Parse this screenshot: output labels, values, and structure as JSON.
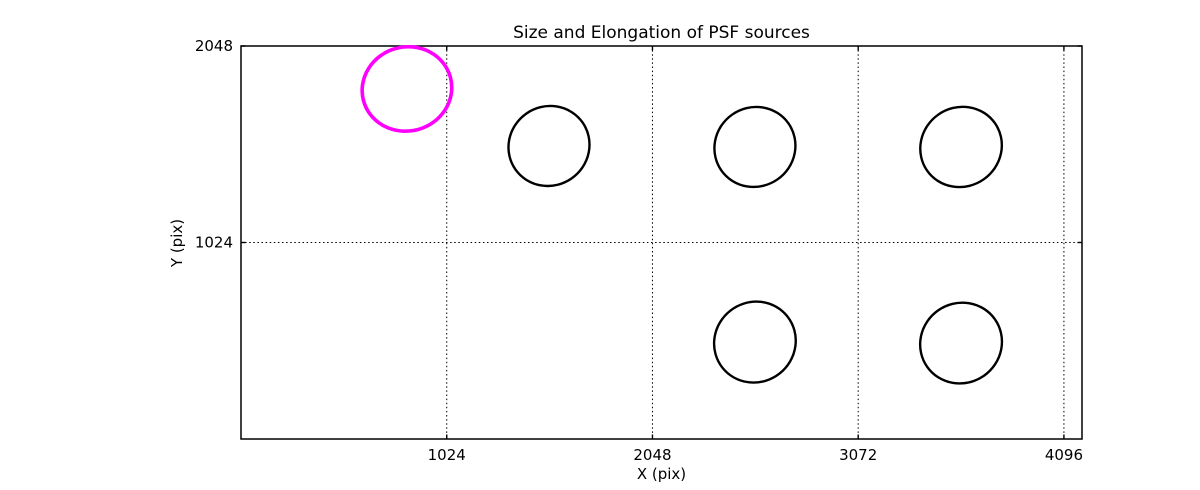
{
  "chart_data": {
    "type": "scatter",
    "title": "Size and Elongation of PSF sources",
    "xlabel": "X (pix)",
    "ylabel": "Y (pix)",
    "xlim": [
      0,
      4186
    ],
    "ylim": [
      0,
      2048
    ],
    "xticks": [
      1024,
      2048,
      3072,
      4096
    ],
    "yticks": [
      1024,
      2048
    ],
    "grid": "dotted",
    "legend": "none",
    "highlight_color": "#ff00ff",
    "default_color": "#000000",
    "sources": [
      {
        "x": 826,
        "y": 1824,
        "a": 224,
        "b": 219,
        "angle": -15,
        "color": "#ff00ff",
        "lw": 3.6,
        "highlighted": true
      },
      {
        "x": 1533,
        "y": 1527,
        "a": 204,
        "b": 206,
        "angle": -35,
        "color": "#000000",
        "lw": 2.4,
        "highlighted": false
      },
      {
        "x": 2558,
        "y": 1522,
        "a": 204,
        "b": 206,
        "angle": -35,
        "color": "#000000",
        "lw": 2.4,
        "highlighted": false
      },
      {
        "x": 3584,
        "y": 1522,
        "a": 206,
        "b": 206,
        "angle": -35,
        "color": "#000000",
        "lw": 2.4,
        "highlighted": false
      },
      {
        "x": 2558,
        "y": 505,
        "a": 206,
        "b": 208,
        "angle": -38,
        "color": "#000000",
        "lw": 2.4,
        "highlighted": false
      },
      {
        "x": 3584,
        "y": 500,
        "a": 206,
        "b": 208,
        "angle": -35,
        "color": "#000000",
        "lw": 2.4,
        "highlighted": false
      }
    ]
  }
}
